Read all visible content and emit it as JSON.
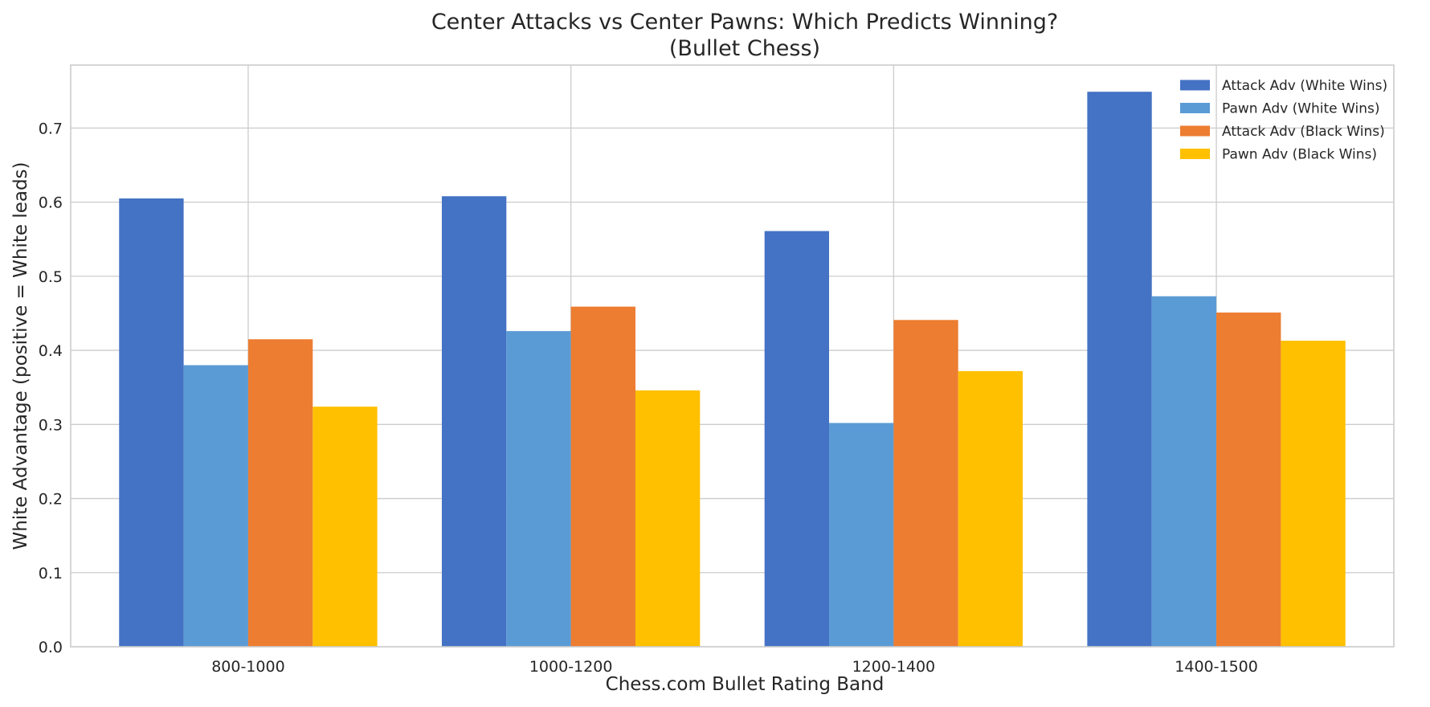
{
  "chart_data": {
    "type": "bar",
    "title": "Center Attacks vs Center Pawns: Which Predicts Winning?",
    "subtitle": "(Bullet Chess)",
    "xlabel": "Chess.com Bullet Rating Band",
    "ylabel": "White Advantage (positive = White leads)",
    "categories": [
      "800-1000",
      "1000-1200",
      "1200-1400",
      "1400-1500"
    ],
    "ylim": [
      0,
      0.785
    ],
    "yticks": [
      "0.0",
      "0.1",
      "0.2",
      "0.3",
      "0.4",
      "0.5",
      "0.6",
      "0.7"
    ],
    "grid": true,
    "legend_position": "top-right",
    "series": [
      {
        "name": "Attack Adv (White Wins)",
        "color": "#4472C4",
        "values": [
          0.605,
          0.608,
          0.561,
          0.749
        ]
      },
      {
        "name": "Pawn Adv (White Wins)",
        "color": "#5B9BD5",
        "values": [
          0.38,
          0.426,
          0.302,
          0.473
        ]
      },
      {
        "name": "Attack Adv (Black Wins)",
        "color": "#ED7D31",
        "values": [
          0.415,
          0.459,
          0.441,
          0.451
        ]
      },
      {
        "name": "Pawn Adv (Black Wins)",
        "color": "#FFC000",
        "values": [
          0.324,
          0.346,
          0.372,
          0.413
        ]
      }
    ]
  }
}
